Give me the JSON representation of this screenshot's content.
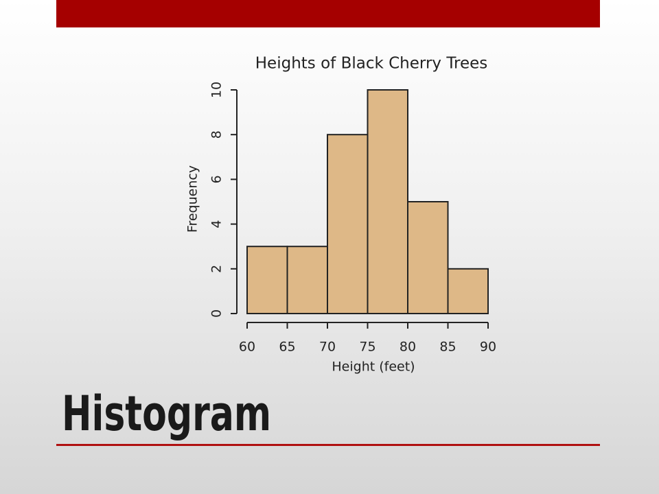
{
  "slide": {
    "title": "Histogram"
  },
  "chart_data": {
    "type": "histogram",
    "title": "Heights of Black Cherry Trees",
    "xlabel": "Height (feet)",
    "ylabel": "Frequency",
    "bins": [
      60,
      65,
      70,
      75,
      80,
      85,
      90
    ],
    "values": [
      3,
      3,
      8,
      10,
      5,
      2
    ],
    "color": "#deb887",
    "xlim": [
      60,
      90
    ],
    "xticks": [
      60,
      65,
      70,
      75,
      80,
      85,
      90
    ],
    "ylim": [
      0,
      10
    ],
    "yticks": [
      0,
      2,
      4,
      6,
      8,
      10
    ]
  }
}
